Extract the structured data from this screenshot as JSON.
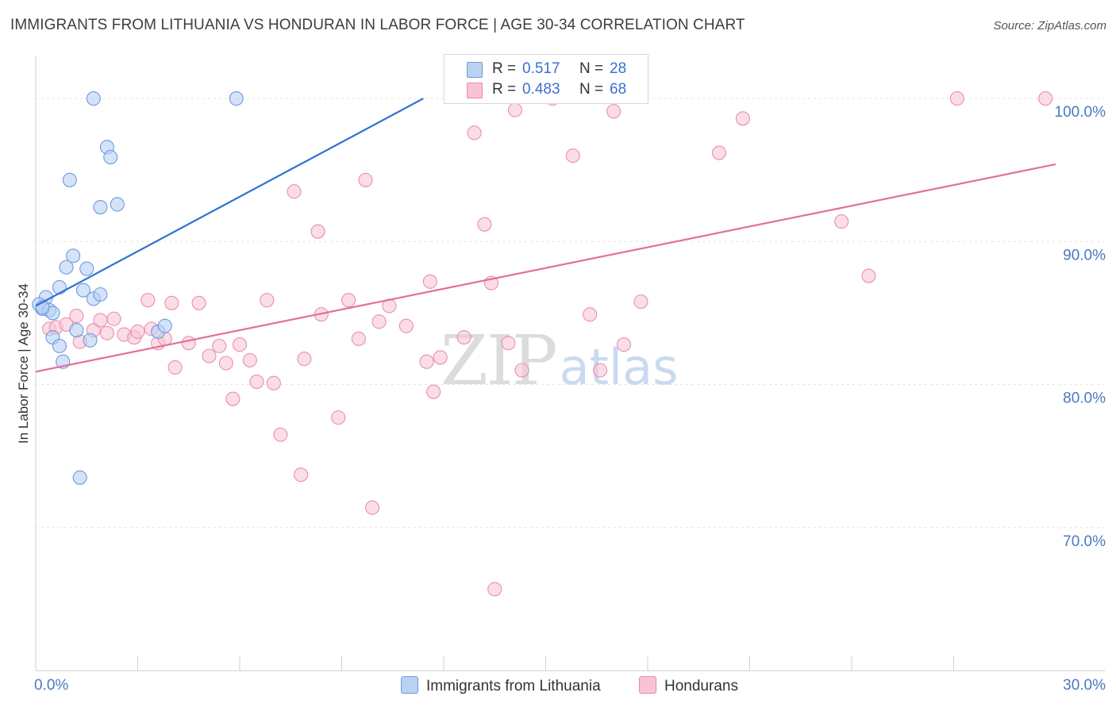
{
  "header": {
    "title": "IMMIGRANTS FROM LITHUANIA VS HONDURAN IN LABOR FORCE | AGE 30-34 CORRELATION CHART",
    "source": "Source: ZipAtlas.com"
  },
  "watermark": {
    "zip": "ZIP",
    "atlas": "atlas"
  },
  "legend": {
    "r_label": "R =",
    "n_label": "N =",
    "items": [
      {
        "name": "Immigrants from Lithuania",
        "r": "0.517",
        "n": "28",
        "fill": "#b9d2f3",
        "stroke": "#6d9be0"
      },
      {
        "name": "Hondurans",
        "r": "0.483",
        "n": "68",
        "fill": "#f8c4d4",
        "stroke": "#e88aaa"
      }
    ]
  },
  "colors": {
    "blue_point_fill": "#b8d1f4",
    "blue_point_stroke": "#6d9be0",
    "blue_line": "#2e73cf",
    "pink_point_fill": "#f9c6d6",
    "pink_point_stroke": "#e98fad",
    "pink_line": "#e46f99",
    "grid": "#e4e4e4",
    "axis": "#cfcfcf"
  },
  "chart_data": {
    "type": "scatter",
    "title": "IMMIGRANTS FROM LITHUANIA VS HONDURAN IN LABOR FORCE | AGE 30-34 CORRELATION CHART",
    "xlabel": "",
    "ylabel": "In Labor Force | Age 30-34",
    "xlim": [
      0,
      30
    ],
    "ylim": [
      60,
      103
    ],
    "x_tick_labels": [
      {
        "value": 0,
        "label": "0.0%"
      },
      {
        "value": 30,
        "label": "30.0%"
      }
    ],
    "y_tick_labels": [
      {
        "value": 70,
        "label": "70.0%"
      },
      {
        "value": 80,
        "label": "80.0%"
      },
      {
        "value": 90,
        "label": "90.0%"
      },
      {
        "value": 100,
        "label": "100.0%"
      }
    ],
    "y_gridlines": [
      70,
      80,
      90,
      100
    ],
    "x_minor_ticks": [
      3,
      6,
      9,
      12,
      15,
      18,
      21,
      24,
      27
    ],
    "series": [
      {
        "name": "Immigrants from Lithuania",
        "color_key": "blue",
        "r": 0.517,
        "n": 28,
        "trendline": {
          "x": [
            0,
            11.4
          ],
          "y": [
            85.5,
            100.0
          ]
        },
        "points": [
          {
            "x": 1.7,
            "y": 100.0
          },
          {
            "x": 5.9,
            "y": 100.0
          },
          {
            "x": 2.1,
            "y": 96.6
          },
          {
            "x": 2.2,
            "y": 95.9
          },
          {
            "x": 1.0,
            "y": 94.3
          },
          {
            "x": 1.9,
            "y": 92.4
          },
          {
            "x": 2.4,
            "y": 92.6
          },
          {
            "x": 1.1,
            "y": 89.0
          },
          {
            "x": 0.9,
            "y": 88.2
          },
          {
            "x": 1.5,
            "y": 88.1
          },
          {
            "x": 0.7,
            "y": 86.8
          },
          {
            "x": 1.4,
            "y": 86.6
          },
          {
            "x": 0.3,
            "y": 86.1
          },
          {
            "x": 1.7,
            "y": 86.0
          },
          {
            "x": 1.9,
            "y": 86.3
          },
          {
            "x": 0.1,
            "y": 85.6
          },
          {
            "x": 0.2,
            "y": 85.3
          },
          {
            "x": 0.4,
            "y": 85.2
          },
          {
            "x": 0.5,
            "y": 85.0
          },
          {
            "x": 1.2,
            "y": 83.8
          },
          {
            "x": 3.6,
            "y": 83.7
          },
          {
            "x": 3.8,
            "y": 84.1
          },
          {
            "x": 0.5,
            "y": 83.3
          },
          {
            "x": 1.6,
            "y": 83.1
          },
          {
            "x": 0.7,
            "y": 82.7
          },
          {
            "x": 0.8,
            "y": 81.6
          },
          {
            "x": 1.3,
            "y": 73.5
          },
          {
            "x": 0.2,
            "y": 85.4
          }
        ]
      },
      {
        "name": "Hondurans",
        "color_key": "pink",
        "r": 0.483,
        "n": 68,
        "trendline": {
          "x": [
            0,
            30
          ],
          "y": [
            80.9,
            95.4
          ]
        },
        "points": [
          {
            "x": 0.4,
            "y": 83.9
          },
          {
            "x": 0.6,
            "y": 84.0
          },
          {
            "x": 1.2,
            "y": 84.8
          },
          {
            "x": 0.9,
            "y": 84.2
          },
          {
            "x": 1.3,
            "y": 83.0
          },
          {
            "x": 1.7,
            "y": 83.8
          },
          {
            "x": 1.9,
            "y": 84.5
          },
          {
            "x": 2.1,
            "y": 83.6
          },
          {
            "x": 2.3,
            "y": 84.6
          },
          {
            "x": 2.6,
            "y": 83.5
          },
          {
            "x": 2.9,
            "y": 83.3
          },
          {
            "x": 3.0,
            "y": 83.7
          },
          {
            "x": 3.4,
            "y": 83.9
          },
          {
            "x": 3.6,
            "y": 82.9
          },
          {
            "x": 3.8,
            "y": 83.2
          },
          {
            "x": 3.3,
            "y": 85.9
          },
          {
            "x": 4.0,
            "y": 85.7
          },
          {
            "x": 4.8,
            "y": 85.7
          },
          {
            "x": 4.1,
            "y": 81.2
          },
          {
            "x": 4.5,
            "y": 82.9
          },
          {
            "x": 5.1,
            "y": 82.0
          },
          {
            "x": 5.4,
            "y": 82.7
          },
          {
            "x": 5.6,
            "y": 81.5
          },
          {
            "x": 5.8,
            "y": 79.0
          },
          {
            "x": 6.0,
            "y": 82.8
          },
          {
            "x": 6.3,
            "y": 81.7
          },
          {
            "x": 6.5,
            "y": 80.2
          },
          {
            "x": 6.8,
            "y": 85.9
          },
          {
            "x": 7.0,
            "y": 80.1
          },
          {
            "x": 7.2,
            "y": 76.5
          },
          {
            "x": 7.6,
            "y": 93.5
          },
          {
            "x": 7.8,
            "y": 73.7
          },
          {
            "x": 7.9,
            "y": 81.8
          },
          {
            "x": 8.3,
            "y": 90.7
          },
          {
            "x": 8.4,
            "y": 84.9
          },
          {
            "x": 8.9,
            "y": 77.7
          },
          {
            "x": 9.2,
            "y": 85.9
          },
          {
            "x": 9.5,
            "y": 83.2
          },
          {
            "x": 9.7,
            "y": 94.3
          },
          {
            "x": 9.9,
            "y": 71.4
          },
          {
            "x": 10.1,
            "y": 84.4
          },
          {
            "x": 10.4,
            "y": 85.5
          },
          {
            "x": 10.9,
            "y": 84.1
          },
          {
            "x": 11.5,
            "y": 81.6
          },
          {
            "x": 11.6,
            "y": 87.2
          },
          {
            "x": 11.7,
            "y": 79.5
          },
          {
            "x": 11.9,
            "y": 81.9
          },
          {
            "x": 12.6,
            "y": 83.3
          },
          {
            "x": 12.9,
            "y": 97.6
          },
          {
            "x": 13.2,
            "y": 91.2
          },
          {
            "x": 13.4,
            "y": 87.1
          },
          {
            "x": 13.5,
            "y": 65.7
          },
          {
            "x": 13.9,
            "y": 82.9
          },
          {
            "x": 14.3,
            "y": 81.0
          },
          {
            "x": 15.2,
            "y": 100.0
          },
          {
            "x": 15.8,
            "y": 96.0
          },
          {
            "x": 16.3,
            "y": 84.9
          },
          {
            "x": 16.6,
            "y": 81.0
          },
          {
            "x": 17.0,
            "y": 99.1
          },
          {
            "x": 17.3,
            "y": 82.8
          },
          {
            "x": 17.8,
            "y": 85.8
          },
          {
            "x": 20.1,
            "y": 96.2
          },
          {
            "x": 20.8,
            "y": 98.6
          },
          {
            "x": 23.7,
            "y": 91.4
          },
          {
            "x": 24.5,
            "y": 87.6
          },
          {
            "x": 27.1,
            "y": 100.0
          },
          {
            "x": 29.7,
            "y": 100.0
          },
          {
            "x": 14.1,
            "y": 99.2
          }
        ]
      }
    ]
  }
}
